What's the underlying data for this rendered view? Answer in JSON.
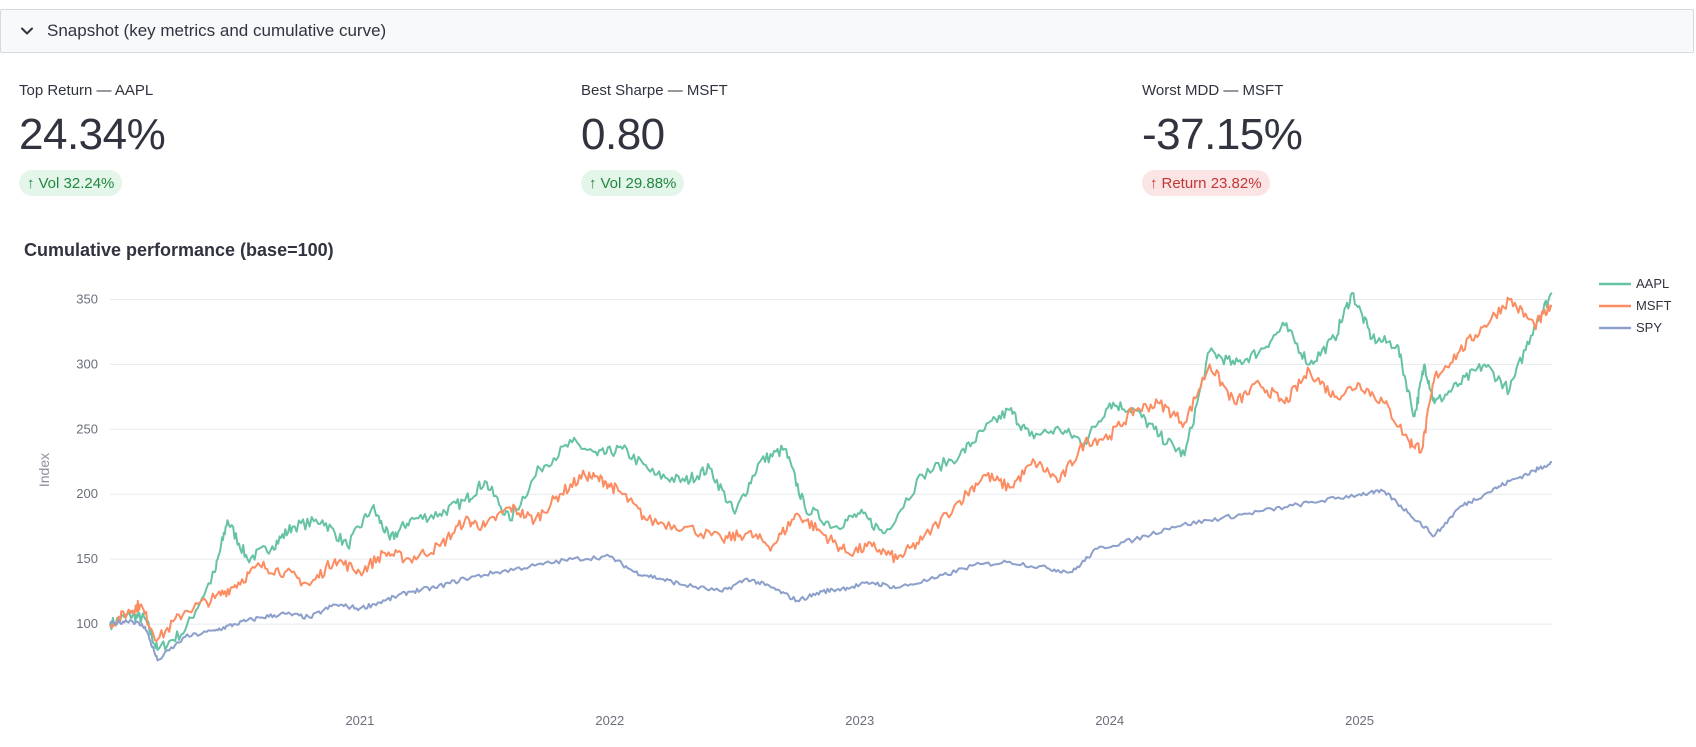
{
  "expander": {
    "title": "Snapshot (key metrics and cumulative curve)",
    "icon": "chevron-down-icon"
  },
  "metrics": [
    {
      "label": "Top Return — AAPL",
      "value": "24.34%",
      "delta": "Vol 32.24%",
      "delta_arrow": "↑",
      "delta_color": "#21873f"
    },
    {
      "label": "Best Sharpe — MSFT",
      "value": "0.80",
      "delta": "Vol 29.88%",
      "delta_arrow": "↑",
      "delta_color": "#21873f"
    },
    {
      "label": "Worst MDD — MSFT",
      "value": "-37.15%",
      "delta": "Return 23.82%",
      "delta_arrow": "↑",
      "delta_color": "#c43535"
    }
  ],
  "chart_title": "Cumulative performance (base=100)",
  "chart_data": {
    "type": "line",
    "title": "Cumulative performance (base=100)",
    "xlabel": "",
    "ylabel": "Index",
    "xlim": [
      2020.0,
      2025.77
    ],
    "ylim": [
      60,
      365
    ],
    "yticks": [
      100,
      150,
      200,
      250,
      300,
      350
    ],
    "xticks": [
      {
        "value": 2021.0,
        "label": "2021"
      },
      {
        "value": 2022.0,
        "label": "2022"
      },
      {
        "value": 2023.0,
        "label": "2023"
      },
      {
        "value": 2024.0,
        "label": "2024"
      },
      {
        "value": 2025.0,
        "label": "2025"
      }
    ],
    "grid": true,
    "legend": "top-right",
    "series": [
      {
        "name": "AAPL",
        "color": "#66c2a5",
        "x": [
          2020.0,
          2020.08,
          2020.14,
          2020.19,
          2020.3,
          2020.42,
          2020.47,
          2020.55,
          2020.65,
          2020.73,
          2020.85,
          2020.95,
          2021.05,
          2021.12,
          2021.2,
          2021.32,
          2021.42,
          2021.5,
          2021.6,
          2021.72,
          2021.85,
          2021.95,
          2022.05,
          2022.18,
          2022.3,
          2022.4,
          2022.5,
          2022.6,
          2022.7,
          2022.78,
          2022.9,
          2023.0,
          2023.1,
          2023.25,
          2023.4,
          2023.5,
          2023.6,
          2023.68,
          2023.8,
          2023.9,
          2024.0,
          2024.1,
          2024.2,
          2024.3,
          2024.4,
          2024.5,
          2024.6,
          2024.7,
          2024.8,
          2024.9,
          2024.97,
          2025.05,
          2025.15,
          2025.22,
          2025.26,
          2025.3,
          2025.4,
          2025.5,
          2025.6,
          2025.7,
          2025.77
        ],
        "y": [
          100,
          107,
          104,
          80,
          95,
          140,
          180,
          150,
          160,
          175,
          180,
          160,
          190,
          165,
          180,
          185,
          195,
          210,
          180,
          220,
          240,
          230,
          235,
          215,
          210,
          220,
          185,
          225,
          235,
          190,
          175,
          185,
          170,
          215,
          230,
          250,
          265,
          245,
          250,
          240,
          270,
          265,
          245,
          230,
          310,
          300,
          310,
          330,
          300,
          320,
          355,
          320,
          315,
          260,
          300,
          270,
          285,
          300,
          280,
          330,
          355
        ]
      },
      {
        "name": "MSFT",
        "color": "#fc8d62",
        "x": [
          2020.0,
          2020.08,
          2020.12,
          2020.19,
          2020.3,
          2020.42,
          2020.5,
          2020.6,
          2020.7,
          2020.8,
          2020.9,
          2021.0,
          2021.1,
          2021.2,
          2021.32,
          2021.42,
          2021.5,
          2021.6,
          2021.7,
          2021.8,
          2021.9,
          2021.98,
          2022.05,
          2022.15,
          2022.3,
          2022.45,
          2022.55,
          2022.65,
          2022.75,
          2022.85,
          2022.95,
          2023.05,
          2023.15,
          2023.25,
          2023.4,
          2023.5,
          2023.6,
          2023.7,
          2023.8,
          2023.9,
          2024.0,
          2024.1,
          2024.2,
          2024.3,
          2024.4,
          2024.5,
          2024.6,
          2024.7,
          2024.8,
          2024.9,
          2025.0,
          2025.1,
          2025.2,
          2025.25,
          2025.3,
          2025.4,
          2025.5,
          2025.6,
          2025.7,
          2025.77
        ],
        "y": [
          100,
          110,
          115,
          88,
          110,
          120,
          130,
          145,
          140,
          130,
          150,
          140,
          155,
          150,
          160,
          180,
          175,
          190,
          180,
          200,
          215,
          210,
          200,
          180,
          175,
          165,
          170,
          160,
          185,
          170,
          155,
          160,
          150,
          165,
          195,
          215,
          205,
          225,
          210,
          240,
          245,
          265,
          270,
          255,
          300,
          270,
          285,
          270,
          295,
          275,
          285,
          270,
          240,
          235,
          290,
          310,
          330,
          350,
          330,
          345
        ]
      },
      {
        "name": "SPY",
        "color": "#8da0cb",
        "x": [
          2020.0,
          2020.08,
          2020.14,
          2020.19,
          2020.3,
          2020.42,
          2020.5,
          2020.6,
          2020.7,
          2020.8,
          2020.9,
          2021.0,
          2021.1,
          2021.2,
          2021.3,
          2021.42,
          2021.55,
          2021.7,
          2021.85,
          2022.0,
          2022.1,
          2022.2,
          2022.3,
          2022.45,
          2022.55,
          2022.65,
          2022.75,
          2022.85,
          2022.95,
          2023.05,
          2023.15,
          2023.3,
          2023.45,
          2023.6,
          2023.75,
          2023.85,
          2023.95,
          2024.1,
          2024.25,
          2024.4,
          2024.55,
          2024.7,
          2024.85,
          2025.0,
          2025.1,
          2025.2,
          2025.3,
          2025.4,
          2025.5,
          2025.6,
          2025.7,
          2025.77
        ],
        "y": [
          100,
          103,
          98,
          72,
          90,
          95,
          100,
          105,
          108,
          105,
          115,
          112,
          118,
          125,
          128,
          135,
          140,
          145,
          150,
          152,
          140,
          135,
          130,
          125,
          135,
          128,
          118,
          125,
          128,
          132,
          128,
          135,
          145,
          148,
          143,
          140,
          158,
          165,
          175,
          180,
          185,
          190,
          195,
          200,
          202,
          185,
          168,
          190,
          200,
          210,
          218,
          225
        ]
      }
    ]
  }
}
